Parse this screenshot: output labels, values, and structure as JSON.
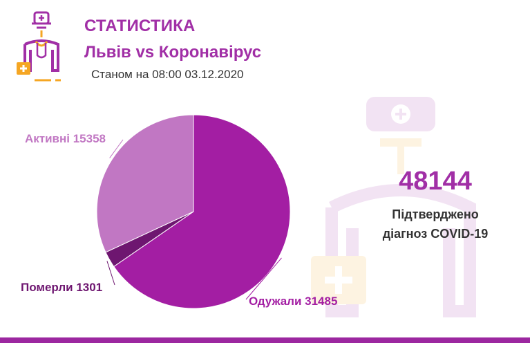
{
  "header": {
    "title": "СТАТИСТИКА",
    "subtitle": "Львів vs Коронавірус",
    "date": "Станом на 08:00 03.12.2020"
  },
  "summary": {
    "total": "48144",
    "caption_line1": "Підтверджено",
    "caption_line2": "діагноз COVID-19"
  },
  "colors": {
    "brand": "#a12fa6",
    "accent_orange": "#f5a623",
    "bar": "#9c27a0"
  },
  "chart_data": {
    "type": "pie",
    "title": "",
    "slices": [
      {
        "name": "Одужали",
        "value": 31485,
        "color": "#a31ea3",
        "label": "Одужали 31485",
        "label_color": "#a31ea3"
      },
      {
        "name": "Померли",
        "value": 1301,
        "color": "#6e1670",
        "label": "Померли 1301",
        "label_color": "#6e1670"
      },
      {
        "name": "Активні",
        "value": 15358,
        "color": "#c177c3",
        "label": "Активні 15358",
        "label_color": "#c177c3"
      }
    ]
  }
}
